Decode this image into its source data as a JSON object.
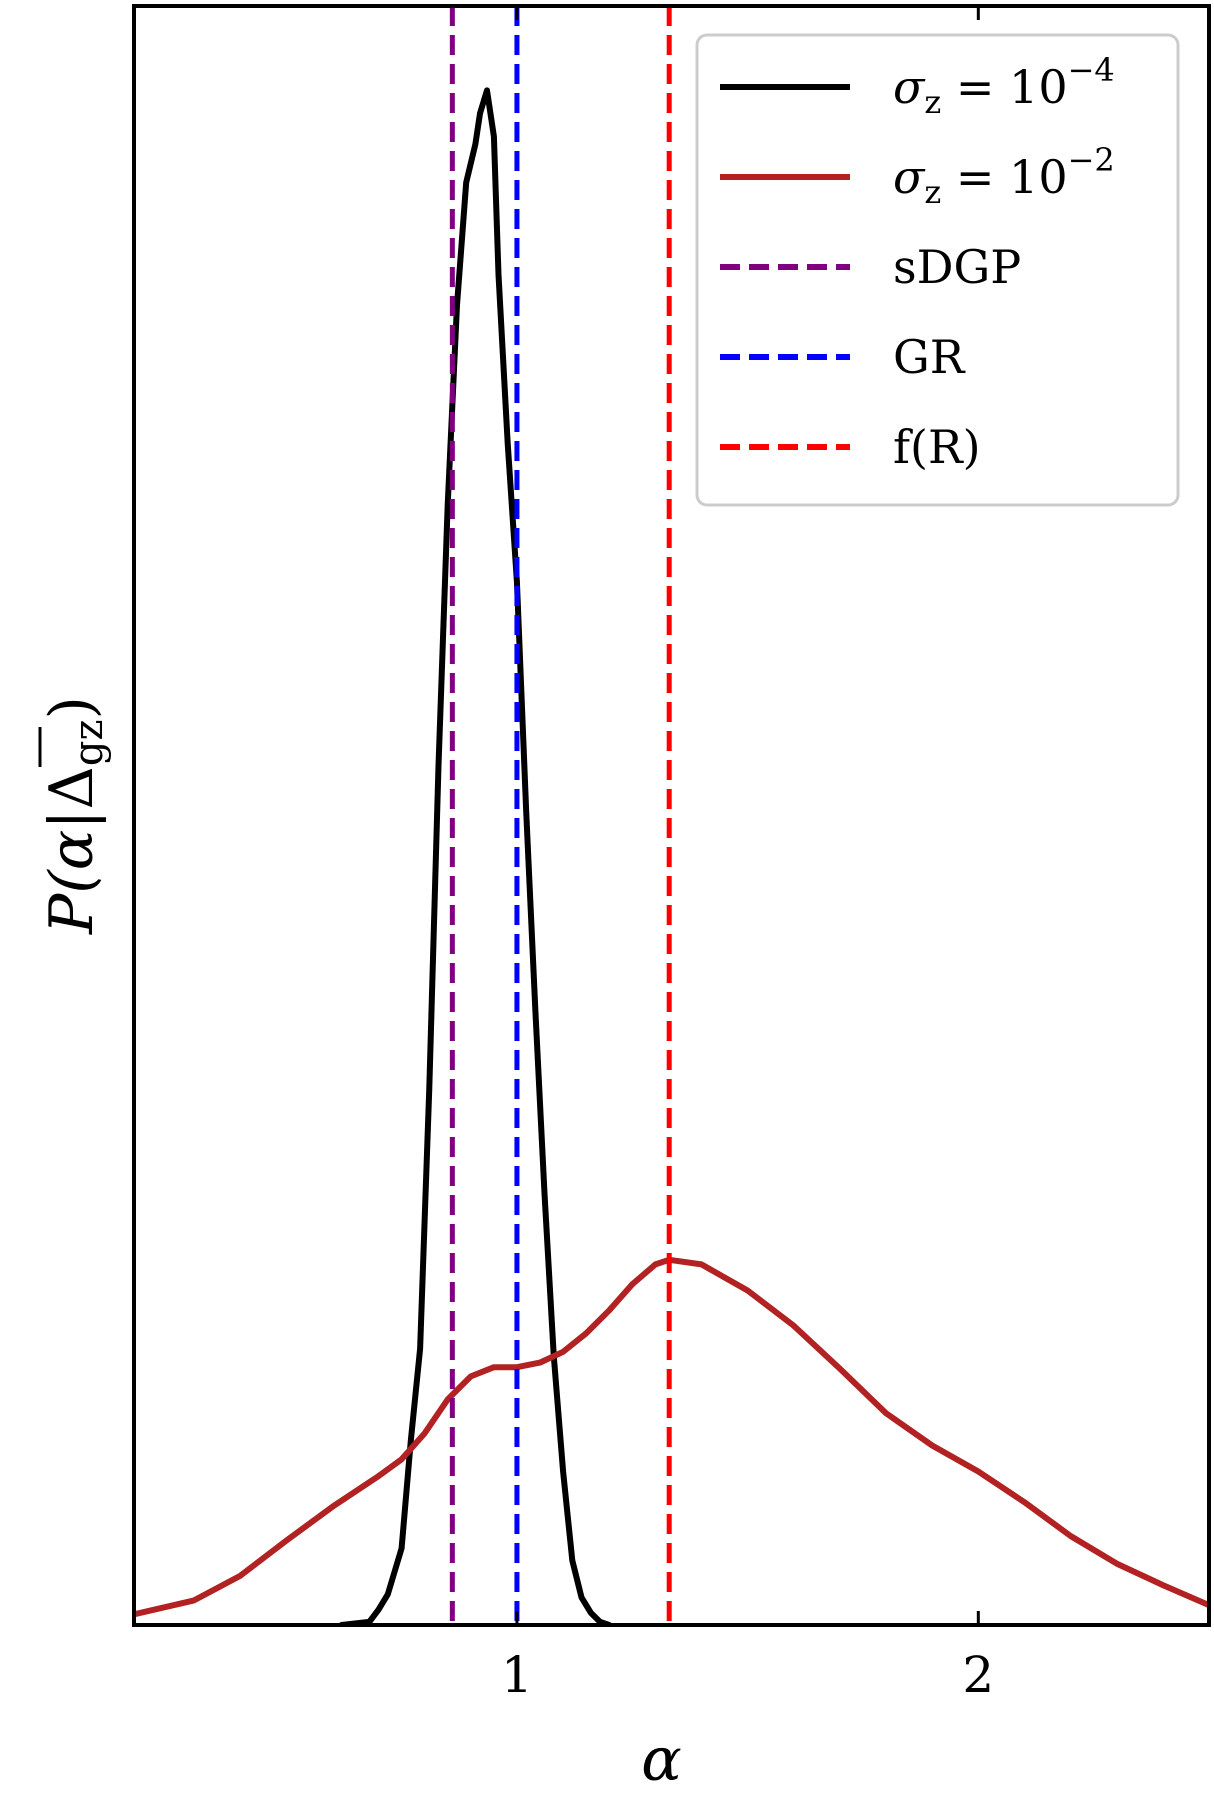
{
  "chart_data": {
    "type": "line",
    "title": "",
    "xlabel": "α",
    "ylabel_parts": {
      "main": "P(α|",
      "delta": "Δ",
      "sub": "gz",
      "close": ")"
    },
    "xlim": [
      0.17,
      2.5
    ],
    "ylim": [
      0,
      1.055
    ],
    "xticks": [
      {
        "value": 1,
        "label": "1"
      },
      {
        "value": 2,
        "label": "2"
      }
    ],
    "grid": false,
    "legend_position": "top-right",
    "series": [
      {
        "name": "σz = 10^-4",
        "legend_main": "σ",
        "legend_sub": "z",
        "legend_eq": " = 10",
        "legend_sup": "−4",
        "color": "#000000",
        "style": "solid",
        "points": [
          [
            0.62,
            0.0
          ],
          [
            0.68,
            0.002
          ],
          [
            0.7,
            0.01
          ],
          [
            0.72,
            0.02
          ],
          [
            0.75,
            0.05
          ],
          [
            0.77,
            0.12
          ],
          [
            0.79,
            0.18
          ],
          [
            0.81,
            0.35
          ],
          [
            0.83,
            0.56
          ],
          [
            0.85,
            0.73
          ],
          [
            0.87,
            0.86
          ],
          [
            0.89,
            0.94
          ],
          [
            0.91,
            0.965
          ],
          [
            0.92,
            0.985
          ],
          [
            0.935,
            1.0
          ],
          [
            0.95,
            0.97
          ],
          [
            0.96,
            0.88
          ],
          [
            0.98,
            0.77
          ],
          [
            1.0,
            0.68
          ],
          [
            1.02,
            0.53
          ],
          [
            1.04,
            0.4
          ],
          [
            1.06,
            0.28
          ],
          [
            1.08,
            0.175
          ],
          [
            1.1,
            0.1
          ],
          [
            1.12,
            0.042
          ],
          [
            1.14,
            0.018
          ],
          [
            1.16,
            0.008
          ],
          [
            1.18,
            0.002
          ],
          [
            1.2,
            0.0
          ]
        ]
      },
      {
        "name": "σz = 10^-2",
        "legend_main": "σ",
        "legend_sub": "z",
        "legend_eq": " = 10",
        "legend_sup": "−2",
        "color": "#b22222",
        "style": "solid",
        "points": [
          [
            0.17,
            0.007
          ],
          [
            0.3,
            0.016
          ],
          [
            0.4,
            0.032
          ],
          [
            0.5,
            0.055
          ],
          [
            0.6,
            0.077
          ],
          [
            0.7,
            0.097
          ],
          [
            0.75,
            0.108
          ],
          [
            0.8,
            0.125
          ],
          [
            0.85,
            0.147
          ],
          [
            0.9,
            0.162
          ],
          [
            0.95,
            0.168
          ],
          [
            1.0,
            0.168
          ],
          [
            1.05,
            0.171
          ],
          [
            1.1,
            0.178
          ],
          [
            1.15,
            0.19
          ],
          [
            1.2,
            0.205
          ],
          [
            1.25,
            0.222
          ],
          [
            1.3,
            0.235
          ],
          [
            1.33,
            0.238
          ],
          [
            1.4,
            0.235
          ],
          [
            1.5,
            0.218
          ],
          [
            1.6,
            0.195
          ],
          [
            1.7,
            0.167
          ],
          [
            1.8,
            0.138
          ],
          [
            1.9,
            0.117
          ],
          [
            2.0,
            0.1
          ],
          [
            2.1,
            0.08
          ],
          [
            2.2,
            0.058
          ],
          [
            2.3,
            0.04
          ],
          [
            2.4,
            0.026
          ],
          [
            2.5,
            0.013
          ]
        ]
      }
    ],
    "vlines": [
      {
        "name": "sDGP",
        "x": 0.86,
        "color": "#800080",
        "style": "dashed"
      },
      {
        "name": "GR",
        "x": 1.0,
        "color": "#0000ff",
        "style": "dashed"
      },
      {
        "name": "f(R)",
        "x": 1.33,
        "color": "#ff0000",
        "style": "dashed"
      }
    ]
  }
}
